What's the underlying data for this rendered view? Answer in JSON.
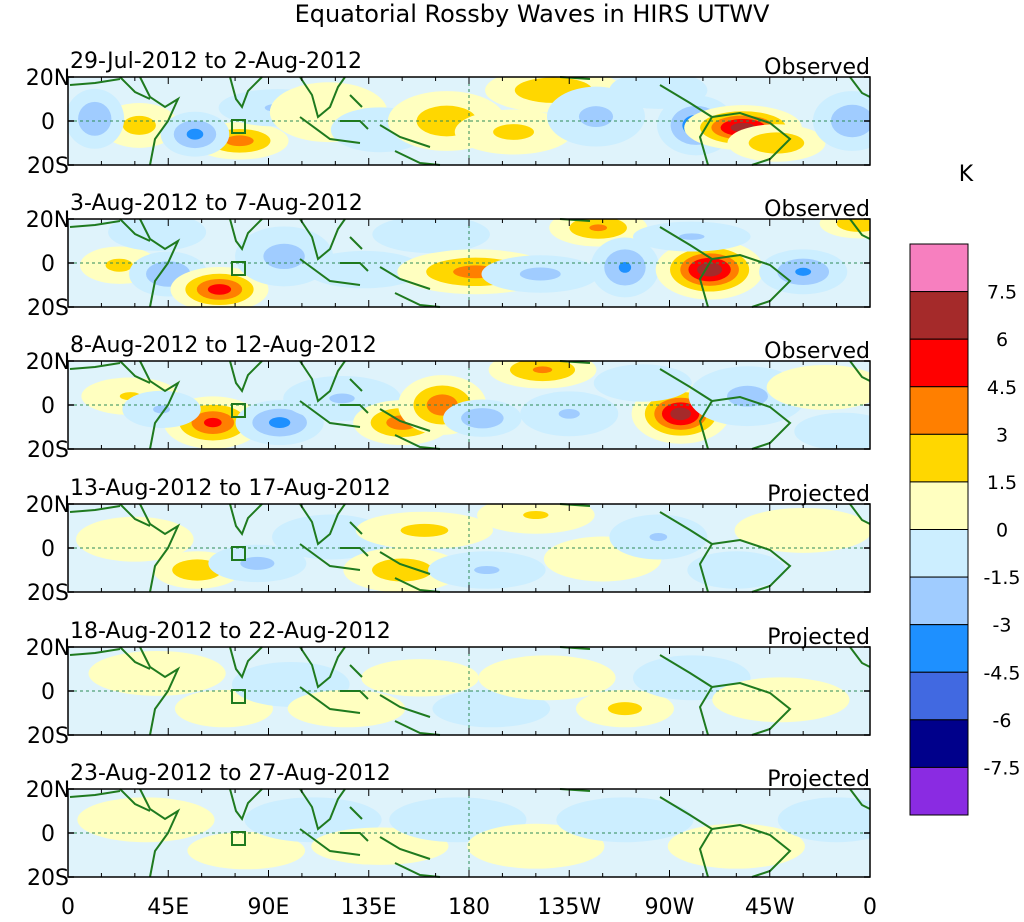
{
  "chart_data": {
    "type": "heatmap",
    "title": "Equatorial Rossby Waves in HIRS UTWV",
    "units": "K",
    "x_ticks": [
      "0",
      "45E",
      "90E",
      "135E",
      "180",
      "135W",
      "90W",
      "45W",
      "0"
    ],
    "x_tick_lon": [
      0,
      45,
      90,
      135,
      180,
      225,
      270,
      315,
      360
    ],
    "y_ticks": [
      "20N",
      "0",
      "20S"
    ],
    "y_tick_lat": [
      20,
      0,
      -20
    ],
    "xlim": [
      0,
      360
    ],
    "ylim": [
      -20,
      20
    ],
    "colorbar": {
      "levels": [
        "7.5",
        "6",
        "4.5",
        "3",
        "1.5",
        "0",
        "-1.5",
        "-3",
        "-4.5",
        "-6",
        "-7.5"
      ],
      "colors": [
        "#f77fbf",
        "#a52a2a",
        "#ff0000",
        "#ff7f00",
        "#ffd700",
        "#ffffc0",
        "#cceeff",
        "#a0ccff",
        "#1e90ff",
        "#4169e1",
        "#00008b",
        "#8a2be2"
      ]
    },
    "panels": [
      {
        "date_range": "29-Jul-2012 to 2-Aug-2012",
        "status": "Observed",
        "blobs": [
          {
            "lon": 77,
            "lat": -9,
            "val": 3.6,
            "slon": 10,
            "slat": 5
          },
          {
            "lon": 32,
            "lat": -2,
            "val": 2.0,
            "slon": 8,
            "slat": 6
          },
          {
            "lon": 12,
            "lat": 1,
            "val": -2.8,
            "slon": 6,
            "slat": 8
          },
          {
            "lon": 57,
            "lat": -6,
            "val": -3.4,
            "slon": 7,
            "slat": 6
          },
          {
            "lon": 94,
            "lat": 6,
            "val": -1.6,
            "slon": 12,
            "slat": 5
          },
          {
            "lon": 117,
            "lat": 4,
            "val": 1.2,
            "slon": 12,
            "slat": 8
          },
          {
            "lon": 140,
            "lat": -4,
            "val": -1.4,
            "slon": 10,
            "slat": 6
          },
          {
            "lon": 170,
            "lat": 0,
            "val": 2.4,
            "slon": 12,
            "slat": 8
          },
          {
            "lon": 200,
            "lat": -5,
            "val": 1.8,
            "slon": 12,
            "slat": 6
          },
          {
            "lon": 218,
            "lat": 14,
            "val": 2.8,
            "slon": 14,
            "slat": 6
          },
          {
            "lon": 237,
            "lat": 2,
            "val": -1.8,
            "slon": 10,
            "slat": 8
          },
          {
            "lon": 265,
            "lat": 14,
            "val": -1.4,
            "slon": 10,
            "slat": 5
          },
          {
            "lon": 282,
            "lat": -2,
            "val": -4.0,
            "slon": 8,
            "slat": 8
          },
          {
            "lon": 303,
            "lat": -3,
            "val": 6.8,
            "slon": 12,
            "slat": 6
          },
          {
            "lon": 318,
            "lat": -10,
            "val": 2.8,
            "slon": 10,
            "slat": 5
          },
          {
            "lon": 352,
            "lat": 0,
            "val": -2.6,
            "slon": 8,
            "slat": 8
          }
        ]
      },
      {
        "date_range": "3-Aug-2012 to 7-Aug-2012",
        "status": "Observed",
        "blobs": [
          {
            "lon": 23,
            "lat": -1,
            "val": 1.8,
            "slon": 8,
            "slat": 5
          },
          {
            "lon": 45,
            "lat": -5,
            "val": -2.8,
            "slon": 8,
            "slat": 6
          },
          {
            "lon": 68,
            "lat": -12,
            "val": 5.2,
            "slon": 10,
            "slat": 6
          },
          {
            "lon": 40,
            "lat": 14,
            "val": -1.4,
            "slon": 10,
            "slat": 5
          },
          {
            "lon": 97,
            "lat": 3,
            "val": -2.0,
            "slon": 10,
            "slat": 8
          },
          {
            "lon": 133,
            "lat": -3,
            "val": -1.4,
            "slon": 12,
            "slat": 5
          },
          {
            "lon": 163,
            "lat": 13,
            "val": -1.4,
            "slon": 12,
            "slat": 5
          },
          {
            "lon": 183,
            "lat": -4,
            "val": 3.6,
            "slon": 16,
            "slat": 6
          },
          {
            "lon": 212,
            "lat": -5,
            "val": -1.8,
            "slon": 12,
            "slat": 5
          },
          {
            "lon": 238,
            "lat": 16,
            "val": 3.0,
            "slon": 10,
            "slat": 5
          },
          {
            "lon": 250,
            "lat": -2,
            "val": -3.2,
            "slon": 7,
            "slat": 8
          },
          {
            "lon": 288,
            "lat": -3,
            "val": 7.0,
            "slon": 11,
            "slat": 8
          },
          {
            "lon": 280,
            "lat": 12,
            "val": -1.6,
            "slon": 12,
            "slat": 4
          },
          {
            "lon": 330,
            "lat": -4,
            "val": -3.0,
            "slon": 9,
            "slat": 6
          },
          {
            "lon": 355,
            "lat": 18,
            "val": 2.8,
            "slon": 8,
            "slat": 4
          }
        ]
      },
      {
        "date_range": "8-Aug-2012 to 12-Aug-2012",
        "status": "Observed",
        "blobs": [
          {
            "lon": 28,
            "lat": 4,
            "val": 1.6,
            "slon": 10,
            "slat": 5
          },
          {
            "lon": 65,
            "lat": -8,
            "val": 4.8,
            "slon": 10,
            "slat": 7
          },
          {
            "lon": 95,
            "lat": -8,
            "val": -3.4,
            "slon": 9,
            "slat": 6
          },
          {
            "lon": 42,
            "lat": -2,
            "val": -1.6,
            "slon": 8,
            "slat": 5
          },
          {
            "lon": 123,
            "lat": 3,
            "val": -1.6,
            "slon": 12,
            "slat": 6
          },
          {
            "lon": 150,
            "lat": -8,
            "val": 3.8,
            "slon": 10,
            "slat": 6
          },
          {
            "lon": 168,
            "lat": 0,
            "val": 4.0,
            "slon": 9,
            "slat": 8
          },
          {
            "lon": 186,
            "lat": -6,
            "val": -2.6,
            "slon": 8,
            "slat": 5
          },
          {
            "lon": 213,
            "lat": 16,
            "val": 3.2,
            "slon": 11,
            "slat": 5
          },
          {
            "lon": 225,
            "lat": -4,
            "val": -1.6,
            "slon": 10,
            "slat": 6
          },
          {
            "lon": 275,
            "lat": -4,
            "val": 6.8,
            "slon": 10,
            "slat": 8
          },
          {
            "lon": 258,
            "lat": 10,
            "val": -1.4,
            "slon": 10,
            "slat": 5
          },
          {
            "lon": 305,
            "lat": 4,
            "val": -1.8,
            "slon": 12,
            "slat": 8
          },
          {
            "lon": 340,
            "lat": 8,
            "val": 1.2,
            "slon": 12,
            "slat": 6
          },
          {
            "lon": 348,
            "lat": -12,
            "val": -1.4,
            "slon": 10,
            "slat": 5
          }
        ]
      },
      {
        "date_range": "13-Aug-2012 to 17-Aug-2012",
        "status": "Projected",
        "blobs": [
          {
            "lon": 30,
            "lat": 4,
            "val": 1.2,
            "slon": 12,
            "slat": 6
          },
          {
            "lon": 58,
            "lat": -10,
            "val": 2.8,
            "slon": 9,
            "slat": 5
          },
          {
            "lon": 85,
            "lat": -7,
            "val": -1.8,
            "slon": 10,
            "slat": 5
          },
          {
            "lon": 118,
            "lat": 5,
            "val": -1.3,
            "slon": 12,
            "slat": 6
          },
          {
            "lon": 150,
            "lat": -10,
            "val": 2.4,
            "slon": 12,
            "slat": 6
          },
          {
            "lon": 160,
            "lat": 8,
            "val": 1.8,
            "slon": 14,
            "slat": 5
          },
          {
            "lon": 188,
            "lat": -10,
            "val": -1.6,
            "slon": 12,
            "slat": 5
          },
          {
            "lon": 210,
            "lat": 15,
            "val": 1.6,
            "slon": 12,
            "slat": 5
          },
          {
            "lon": 240,
            "lat": -5,
            "val": 1.4,
            "slon": 12,
            "slat": 6
          },
          {
            "lon": 265,
            "lat": 5,
            "val": -1.5,
            "slon": 10,
            "slat": 6
          },
          {
            "lon": 300,
            "lat": -10,
            "val": -1.4,
            "slon": 10,
            "slat": 5
          },
          {
            "lon": 330,
            "lat": 8,
            "val": 1.2,
            "slon": 14,
            "slat": 6
          }
        ]
      },
      {
        "date_range": "18-Aug-2012 to 22-Aug-2012",
        "status": "Projected",
        "blobs": [
          {
            "lon": 40,
            "lat": 8,
            "val": 1.0,
            "slon": 14,
            "slat": 6
          },
          {
            "lon": 70,
            "lat": -8,
            "val": 1.4,
            "slon": 10,
            "slat": 5
          },
          {
            "lon": 100,
            "lat": 3,
            "val": -1.2,
            "slon": 12,
            "slat": 6
          },
          {
            "lon": 125,
            "lat": -8,
            "val": 1.2,
            "slon": 12,
            "slat": 5
          },
          {
            "lon": 158,
            "lat": 6,
            "val": 1.4,
            "slon": 12,
            "slat": 5
          },
          {
            "lon": 190,
            "lat": -8,
            "val": -1.3,
            "slon": 12,
            "slat": 5
          },
          {
            "lon": 215,
            "lat": 6,
            "val": 1.0,
            "slon": 14,
            "slat": 6
          },
          {
            "lon": 250,
            "lat": -8,
            "val": 1.8,
            "slon": 10,
            "slat": 5
          },
          {
            "lon": 280,
            "lat": 6,
            "val": -1.0,
            "slon": 12,
            "slat": 6
          },
          {
            "lon": 320,
            "lat": -4,
            "val": 1.0,
            "slon": 14,
            "slat": 6
          }
        ]
      },
      {
        "date_range": "23-Aug-2012 to 27-Aug-2012",
        "status": "Projected",
        "blobs": [
          {
            "lon": 35,
            "lat": 6,
            "val": 0.9,
            "slon": 14,
            "slat": 6
          },
          {
            "lon": 80,
            "lat": -8,
            "val": 1.0,
            "slon": 12,
            "slat": 5
          },
          {
            "lon": 110,
            "lat": 6,
            "val": -1.0,
            "slon": 14,
            "slat": 6
          },
          {
            "lon": 140,
            "lat": -6,
            "val": 1.0,
            "slon": 14,
            "slat": 5
          },
          {
            "lon": 175,
            "lat": 6,
            "val": -0.8,
            "slon": 14,
            "slat": 6
          },
          {
            "lon": 210,
            "lat": -6,
            "val": 0.9,
            "slon": 14,
            "slat": 6
          },
          {
            "lon": 250,
            "lat": 6,
            "val": -0.9,
            "slon": 14,
            "slat": 6
          },
          {
            "lon": 300,
            "lat": -6,
            "val": 0.9,
            "slon": 14,
            "slat": 6
          },
          {
            "lon": 345,
            "lat": 6,
            "val": -0.7,
            "slon": 12,
            "slat": 6
          }
        ]
      }
    ]
  }
}
